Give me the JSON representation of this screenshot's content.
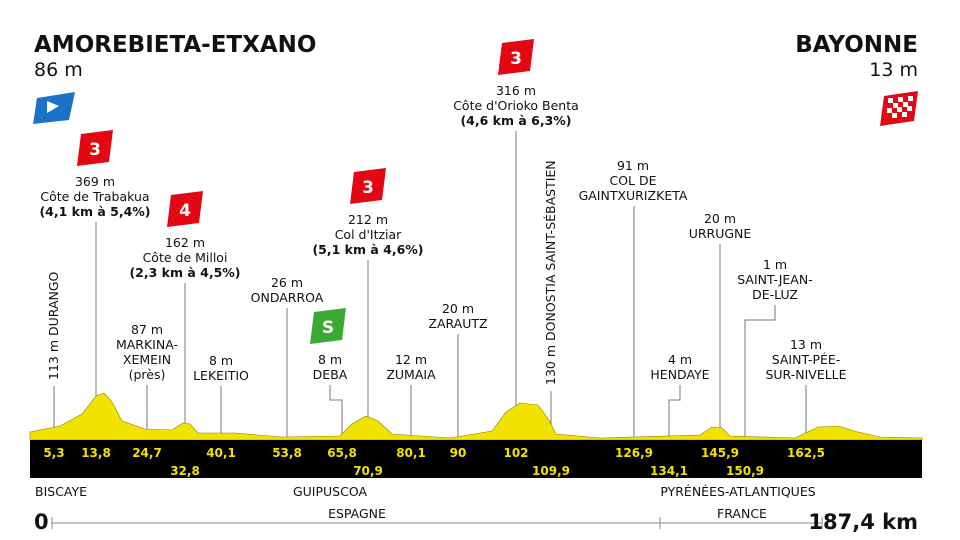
{
  "start": {
    "name": "AMOREBIETA-ETXANO",
    "altitude": "86 m",
    "km": "0"
  },
  "finish": {
    "name": "BAYONNE",
    "altitude": "13 m",
    "km": "187,4 km"
  },
  "points": [
    {
      "km": "5,3",
      "altitude": "113 m",
      "lines": [
        "DURANGO"
      ]
    },
    {
      "km": "13,8",
      "altitude": "369 m",
      "lines": [
        "Côte de Trabakua"
      ],
      "detail": "(4,1 km à 5,4%)",
      "badge": "3"
    },
    {
      "km": "24,7",
      "altitude": "87 m",
      "lines": [
        "MARKINA-",
        "XEMEIN",
        "(près)"
      ]
    },
    {
      "km": "32,8",
      "altitude": "162 m",
      "lines": [
        "Côte de Milloi"
      ],
      "detail": "(2,3 km à 4,5%)",
      "badge": "4"
    },
    {
      "km": "40,1",
      "altitude": "8 m",
      "lines": [
        "LEKEITIO"
      ]
    },
    {
      "km": "53,8",
      "altitude": "26 m",
      "lines": [
        "ONDARROA"
      ]
    },
    {
      "km": "65,8",
      "altitude": "8 m",
      "lines": [
        "DEBA"
      ],
      "badge": "S"
    },
    {
      "km": "70,9",
      "altitude": "212 m",
      "lines": [
        "Col d'Itziar"
      ],
      "detail": "(5,1 km à 4,6%)",
      "badge": "3"
    },
    {
      "km": "80,1",
      "altitude": "12 m",
      "lines": [
        "ZUMAIA"
      ]
    },
    {
      "km": "90",
      "altitude": "20 m",
      "lines": [
        "ZARAUTZ"
      ]
    },
    {
      "km": "102",
      "altitude": "316 m",
      "lines": [
        "Côte d'Orioko Benta"
      ],
      "detail": "(4,6 km à 6,3%)",
      "badge": "3"
    },
    {
      "km": "109,9",
      "altitude": "130 m",
      "lines": [
        "DONOSTIA SAINT-SÉBASTIEN"
      ]
    },
    {
      "km": "126,9",
      "altitude": "91 m",
      "lines": [
        "COL DE",
        "GAINTXURIZKETA"
      ]
    },
    {
      "km": "134,1",
      "altitude": "4 m",
      "lines": [
        "HENDAYE"
      ]
    },
    {
      "km": "145,9",
      "altitude": "20 m",
      "lines": [
        "URRUGNE"
      ]
    },
    {
      "km": "150,9",
      "altitude": "1 m",
      "lines": [
        "SAINT-JEAN-",
        "DE-LUZ"
      ]
    },
    {
      "km": "162,5",
      "altitude": "13 m",
      "lines": [
        "SAINT-PÉE-",
        "SUR-NIVELLE"
      ]
    }
  ],
  "provinces": [
    "BISCAYE",
    "GUIPUSCOA",
    "PYRÉNÉES-ATLANTIQUES"
  ],
  "countries": [
    "ESPAGNE",
    "FRANCE"
  ]
}
